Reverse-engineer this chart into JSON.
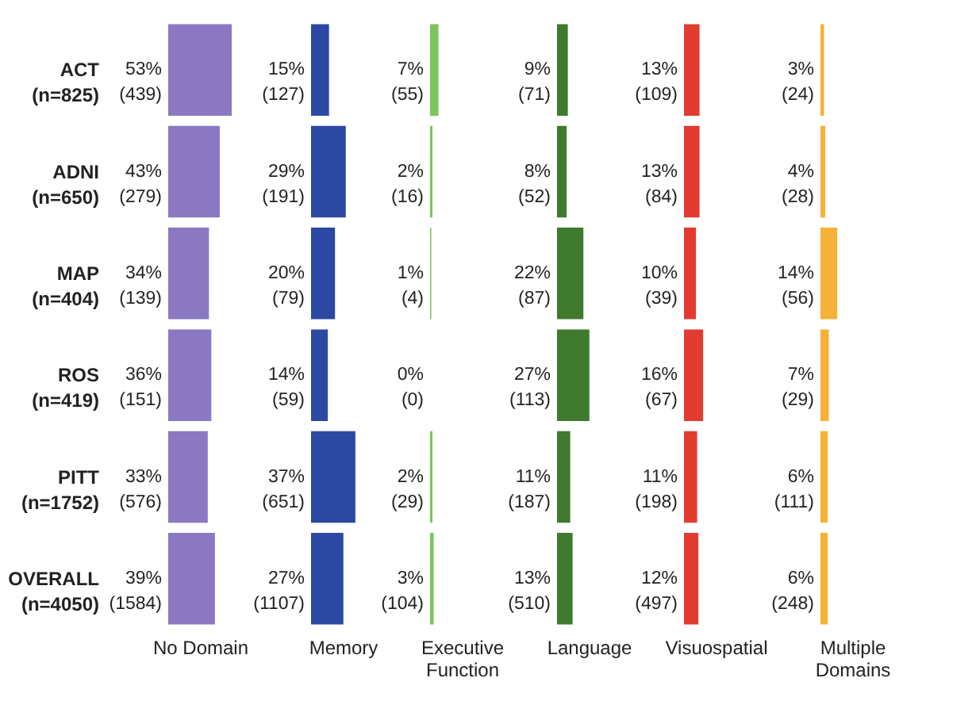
{
  "chart_data": [
    {
      "type": "bar",
      "orientation": "horizontal",
      "xlabel": "No Domain",
      "tick_labels": "y",
      "color": "#8b78c2",
      "categories": [
        "ACT\n(n=825)",
        "ADNI\n(n=650)",
        "MAP\n(n=404)",
        "ROS\n(n=419)",
        "PITT\n(n=1752)",
        "OVERALL\n(n=4050)"
      ],
      "values": [
        53,
        43,
        34,
        36,
        33,
        39
      ],
      "value_labels": [
        "53%\n(439)",
        "43%\n(279)",
        "34%\n(139)",
        "36%\n(151)",
        "33%\n(576)",
        "39%\n(1584)"
      ]
    },
    {
      "type": "bar",
      "orientation": "horizontal",
      "xlabel": "Memory",
      "tick_labels": false,
      "color": "#2b48a3",
      "values": [
        15,
        29,
        20,
        14,
        37,
        27
      ],
      "value_labels": [
        "15%\n(127)",
        "29%\n(191)",
        "20%\n(79)",
        "14%\n(59)",
        "37%\n(651)",
        "27%\n(1107)"
      ]
    },
    {
      "type": "bar",
      "orientation": "horizontal",
      "xlabel": "Executive\nFunction",
      "tick_labels": false,
      "color": "#7cc55a",
      "values": [
        7,
        2,
        1,
        0,
        2,
        3
      ],
      "value_labels": [
        "7%\n(55)",
        "2%\n(16)",
        "1%\n(4)",
        "0%\n(0)",
        "2%\n(29)",
        "3%\n(104)"
      ]
    },
    {
      "type": "bar",
      "orientation": "horizontal",
      "xlabel": "Language",
      "tick_labels": false,
      "color": "#3f7a2f",
      "values": [
        9,
        8,
        22,
        27,
        11,
        13
      ],
      "value_labels": [
        "9%\n(71)",
        "8%\n(52)",
        "22%\n(87)",
        "27%\n(113)",
        "11%\n(187)",
        "13%\n(510)"
      ]
    },
    {
      "type": "bar",
      "orientation": "horizontal",
      "xlabel": "Visuospatial",
      "tick_labels": false,
      "color": "#e23c32",
      "values": [
        13,
        13,
        10,
        16,
        11,
        12
      ],
      "value_labels": [
        "13%\n(109)",
        "13%\n(84)",
        "10%\n(39)",
        "16%\n(67)",
        "11%\n(198)",
        "12%\n(497)"
      ]
    },
    {
      "type": "bar",
      "orientation": "horizontal",
      "xlabel": "Multiple\nDomains",
      "tick_labels": false,
      "color": "#f5b236",
      "values": [
        3,
        4,
        14,
        7,
        6,
        6
      ],
      "value_labels": [
        "3%\n(24)",
        "4%\n(28)",
        "14%\n(56)",
        "7%\n(29)",
        "6%\n(111)",
        "6%\n(248)"
      ]
    }
  ]
}
